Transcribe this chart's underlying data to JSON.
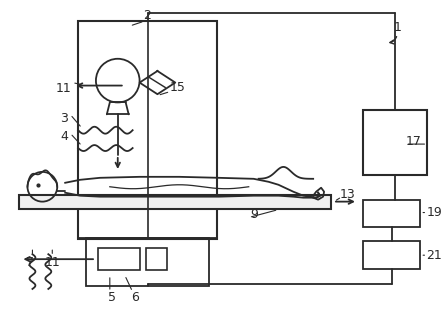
{
  "bg_color": "#ffffff",
  "line_color": "#2a2a2a",
  "lw": 1.3,
  "fig_width": 4.43,
  "fig_height": 3.11,
  "dpi": 100
}
